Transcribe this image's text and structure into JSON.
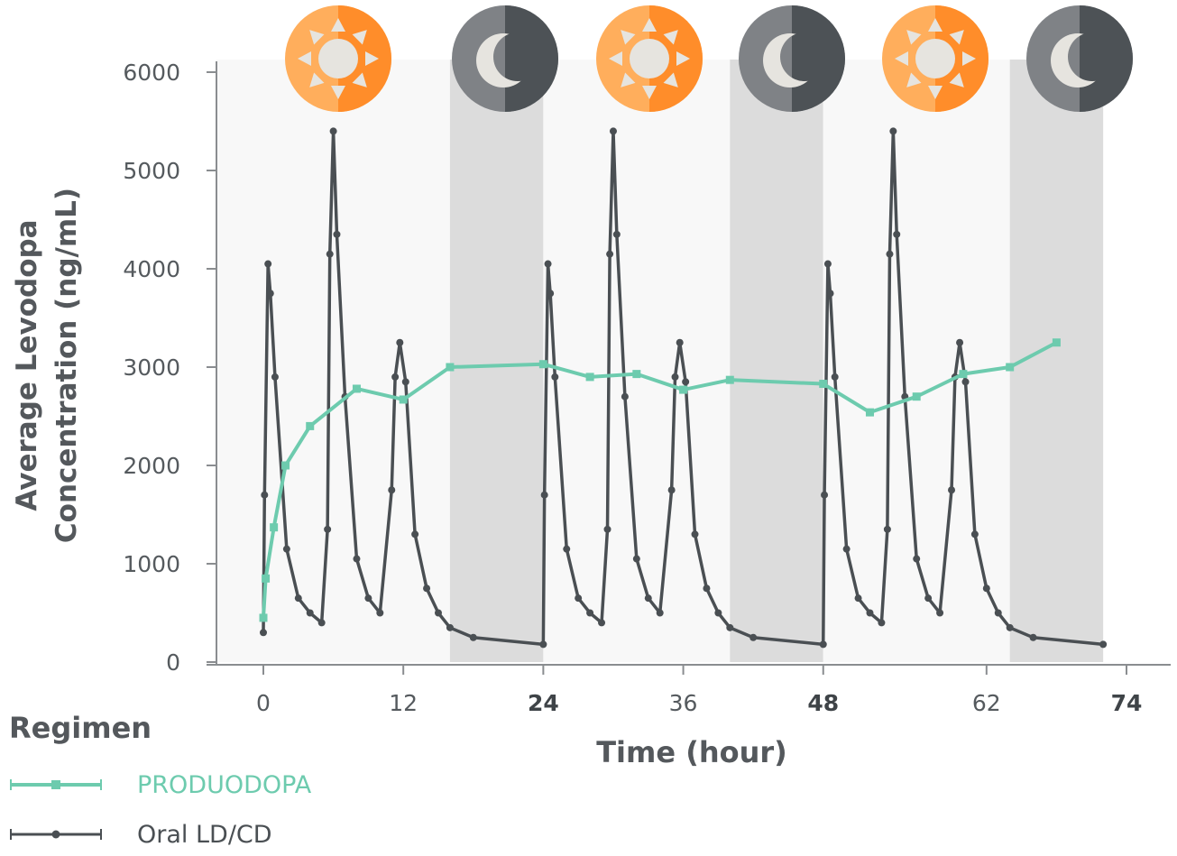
{
  "colors": {
    "produodopa": "#6dcbae",
    "oral": "#4a4f53",
    "day_shade": "#f8f8f8",
    "night_shade": "#dcdcdc",
    "sun_light": "#ffae5c",
    "sun_dark": "#ff8d2a",
    "moon_light": "#7f8286",
    "moon_dark": "#4d5256"
  },
  "chart_data": {
    "type": "line",
    "xlabel": "Time (hour)",
    "ylabel_line1": "Average Levodopa",
    "ylabel_line2": "Concentration (ng/mL)",
    "xlim": [
      0,
      74
    ],
    "ylim": [
      0,
      6000
    ],
    "x_ticks": [
      {
        "value": 0,
        "label": "0",
        "bold": false
      },
      {
        "value": 12,
        "label": "12",
        "bold": false
      },
      {
        "value": 24,
        "label": "24",
        "bold": true
      },
      {
        "value": 36,
        "label": "36",
        "bold": false
      },
      {
        "value": 48,
        "label": "48",
        "bold": true
      },
      {
        "value": 62,
        "label": "62",
        "bold": false
      },
      {
        "value": 74,
        "label": "74",
        "bold": true
      }
    ],
    "y_ticks": [
      {
        "value": 0,
        "label": "0"
      },
      {
        "value": 1000,
        "label": "1000"
      },
      {
        "value": 2000,
        "label": "2000"
      },
      {
        "value": 3000,
        "label": "3000"
      },
      {
        "value": 4000,
        "label": "4000"
      },
      {
        "value": 5000,
        "label": "5000"
      },
      {
        "value": 6000,
        "label": "6000"
      }
    ],
    "periods": [
      {
        "type": "day",
        "start": 0,
        "end": 16
      },
      {
        "type": "night",
        "start": 16,
        "end": 24
      },
      {
        "type": "day",
        "start": 24,
        "end": 40
      },
      {
        "type": "night",
        "start": 40,
        "end": 48
      },
      {
        "type": "day",
        "start": 48,
        "end": 64
      },
      {
        "type": "night",
        "start": 64,
        "end": 72
      }
    ],
    "series": [
      {
        "key": "oral",
        "name": "Oral LD/CD",
        "x": [
          0,
          0.1,
          0.4,
          0.6,
          1.0,
          2.0,
          3.0,
          4.0,
          5.0,
          5.5,
          5.7,
          6.0,
          6.3,
          7.0,
          8.0,
          9.0,
          10.0,
          11.0,
          11.3,
          11.7,
          12.2,
          13.0,
          14.0,
          15.0,
          16.0,
          18.0,
          24.0,
          24.1,
          24.4,
          24.6,
          25.0,
          26.0,
          27.0,
          28.0,
          29.0,
          29.5,
          29.7,
          30.0,
          30.3,
          31.0,
          32.0,
          33.0,
          34.0,
          35.0,
          35.3,
          35.7,
          36.2,
          37.0,
          38.0,
          39.0,
          40.0,
          42.0,
          48.0,
          48.1,
          48.4,
          48.6,
          49.0,
          50.0,
          51.0,
          52.0,
          53.0,
          53.5,
          53.7,
          54.0,
          54.3,
          55.0,
          56.0,
          57.0,
          58.0,
          59.0,
          59.3,
          59.7,
          60.2,
          61.0,
          62.0,
          63.0,
          64.0,
          66.0,
          72.0
        ],
        "y": [
          300,
          1700,
          4050,
          3750,
          2900,
          1150,
          650,
          500,
          400,
          1350,
          4150,
          5400,
          4350,
          2700,
          1050,
          650,
          500,
          1750,
          2900,
          3250,
          2850,
          1300,
          750,
          500,
          350,
          250,
          180,
          1700,
          4050,
          3750,
          2900,
          1150,
          650,
          500,
          400,
          1350,
          4150,
          5400,
          4350,
          2700,
          1050,
          650,
          500,
          1750,
          2900,
          3250,
          2850,
          1300,
          750,
          500,
          350,
          250,
          180,
          1700,
          4050,
          3750,
          2900,
          1150,
          650,
          500,
          400,
          1350,
          4150,
          5400,
          4350,
          2700,
          1050,
          650,
          500,
          1750,
          2900,
          3250,
          2850,
          1300,
          750,
          500,
          350,
          250,
          180
        ]
      },
      {
        "key": "produodopa",
        "name": "PRODUODOPA",
        "x": [
          0,
          0.2,
          0.9,
          1.9,
          4.0,
          8.0,
          12.0,
          16.0,
          24.0,
          28.0,
          32.0,
          36.0,
          40.0,
          48.0,
          52.0,
          56.0,
          60.0,
          64.0,
          68.0
        ],
        "y": [
          450,
          850,
          1370,
          2000,
          2400,
          2780,
          2670,
          3000,
          3030,
          2900,
          2930,
          2770,
          2870,
          2830,
          2540,
          2700,
          2930,
          3000,
          3250
        ]
      }
    ]
  },
  "legend": {
    "title": "Regimen",
    "items": [
      {
        "key": "produodopa",
        "label": "PRODUODOPA"
      },
      {
        "key": "oral",
        "label": "Oral LD/CD"
      }
    ]
  }
}
